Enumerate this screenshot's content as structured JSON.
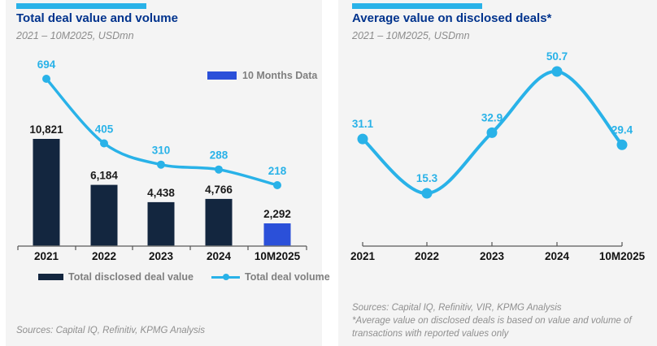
{
  "page": {
    "background": "#ffffff",
    "panel_background": "#f4f4f4"
  },
  "colors": {
    "accent_cyan": "#29b2e8",
    "bar_navy": "#13263f",
    "bar_royal_blue": "#2b50d9",
    "title_blue": "#00338d",
    "muted_gray": "#8c8c8c",
    "legend_gray": "#7f7f7f",
    "axis_gray": "#737373",
    "label_black": "#1a1a1a"
  },
  "chart_data": [
    {
      "type": "bar",
      "title": "Total deal value and volume",
      "subtitle": "2021 – 10M2025, USDmn",
      "categories": [
        "2021",
        "2022",
        "2023",
        "2024",
        "10M2025"
      ],
      "series": [
        {
          "name": "Total disclosed deal value",
          "render": "bar",
          "values": [
            10821,
            6184,
            4438,
            4766,
            2292
          ],
          "labels": [
            "10,821",
            "6,184",
            "4,438",
            "4,766",
            "2,292"
          ],
          "bar_colors": [
            "#13263f",
            "#13263f",
            "#13263f",
            "#13263f",
            "#2b50d9"
          ]
        },
        {
          "name": "Total deal volume",
          "render": "line",
          "values": [
            694,
            405,
            310,
            288,
            218
          ],
          "labels": [
            "694",
            "405",
            "310",
            "288",
            "218"
          ],
          "color": "#29b2e8"
        }
      ],
      "annotations": [
        "10 Months Data"
      ],
      "legend_position": "bottom",
      "grid": false,
      "ylim_bars": [
        0,
        12000
      ],
      "ylim_line": [
        0,
        800
      ],
      "sources": "Sources: Capital IQ, Refinitiv, KPMG Analysis"
    },
    {
      "type": "line",
      "title": "Average value on disclosed deals*",
      "subtitle": "2021 – 10M2025, USDmn",
      "categories": [
        "2021",
        "2022",
        "2023",
        "2024",
        "10M2025"
      ],
      "series": [
        {
          "name": "Average value on disclosed deals",
          "render": "line",
          "values": [
            31.1,
            15.3,
            32.9,
            50.7,
            29.4
          ],
          "labels": [
            "31.1",
            "15.3",
            "32.9",
            "50.7",
            "29.4"
          ],
          "color": "#29b2e8"
        }
      ],
      "legend_position": "none",
      "grid": false,
      "ylim": [
        0,
        60
      ],
      "sources": "Sources: Capital IQ, Refinitiv, VIR, KPMG Analysis",
      "footnote": "*Average value on disclosed deals is based on value and volume of transactions with reported values only"
    }
  ]
}
